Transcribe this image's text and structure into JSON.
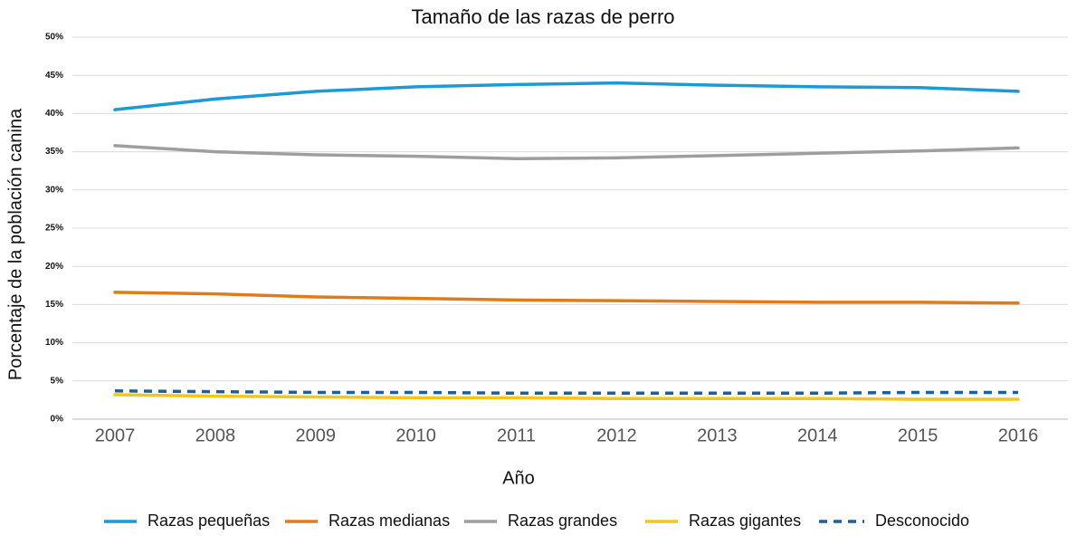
{
  "chart_data": {
    "type": "line",
    "title": "Tamaño de las razas de perro",
    "x_label": "Año",
    "y_label": "Porcentaje de la población canina",
    "categories": [
      "2007",
      "2008",
      "2009",
      "2010",
      "2011",
      "2012",
      "2013",
      "2014",
      "2015",
      "2016"
    ],
    "series": [
      {
        "name": "Razas pequeñas",
        "color": "#1a9ad6",
        "style": "solid",
        "values": [
          40.5,
          41.9,
          42.9,
          43.5,
          43.8,
          44.0,
          43.7,
          43.5,
          43.4,
          42.9
        ]
      },
      {
        "name": "Razas medianas",
        "color": "#e07b1a",
        "style": "solid",
        "values": [
          16.6,
          16.4,
          16.0,
          15.8,
          15.6,
          15.5,
          15.4,
          15.3,
          15.3,
          15.2
        ]
      },
      {
        "name": "Razas grandes",
        "color": "#9e9e9e",
        "style": "solid",
        "values": [
          35.8,
          35.0,
          34.6,
          34.4,
          34.1,
          34.2,
          34.5,
          34.8,
          35.1,
          35.5
        ]
      },
      {
        "name": "Razas gigantes",
        "color": "#f5c518",
        "style": "solid",
        "values": [
          3.2,
          3.0,
          2.9,
          2.8,
          2.8,
          2.7,
          2.7,
          2.7,
          2.6,
          2.6
        ]
      },
      {
        "name": "Desconocido",
        "color": "#1d5f9e",
        "style": "dashed",
        "values": [
          3.7,
          3.6,
          3.5,
          3.5,
          3.4,
          3.4,
          3.4,
          3.4,
          3.5,
          3.5
        ]
      }
    ],
    "ylim": [
      0,
      50
    ],
    "yticks": [
      {
        "value": 0,
        "label": "0%"
      },
      {
        "value": 5,
        "label": "5%"
      },
      {
        "value": 10,
        "label": "10%"
      },
      {
        "value": 15,
        "label": "15%"
      },
      {
        "value": 20,
        "label": "20%"
      },
      {
        "value": 25,
        "label": "25%"
      },
      {
        "value": 30,
        "label": "30%"
      },
      {
        "value": 35,
        "label": "35%"
      },
      {
        "value": 40,
        "label": "40%"
      },
      {
        "value": 45,
        "label": "45%"
      },
      {
        "value": 50,
        "label": "50%"
      }
    ],
    "grid": true,
    "legend": "bottom"
  }
}
